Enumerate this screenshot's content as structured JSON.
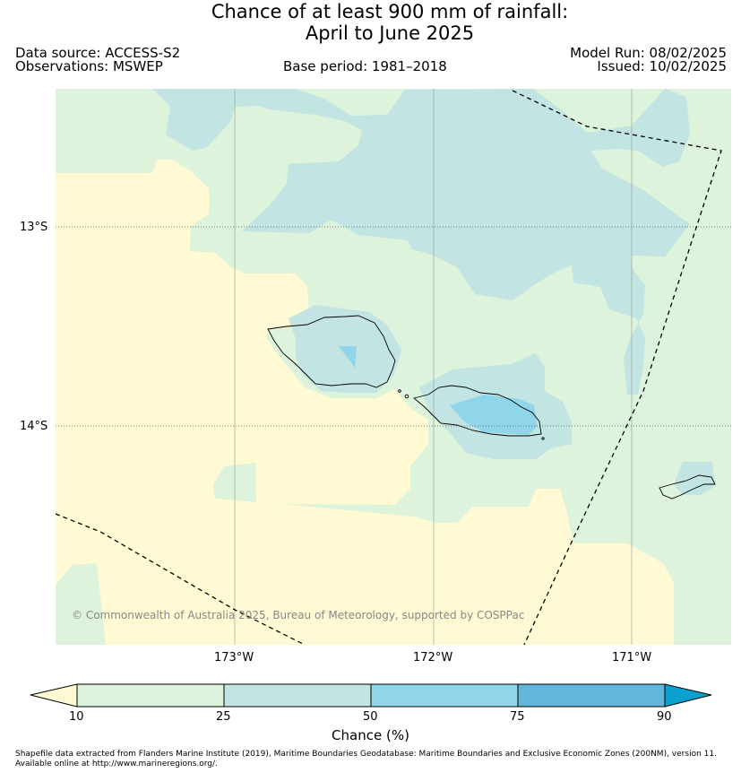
{
  "header": {
    "title_line1": "Chance of at least 900 mm of rainfall:",
    "title_line2": "April to June 2025",
    "data_source": "Data source: ACCESS-S2",
    "observations": "Observations: MSWEP",
    "base_period": "Base period: 1981–2018",
    "model_run": "Model Run: 08/02/2025",
    "issued": "Issued: 10/02/2025"
  },
  "map": {
    "lat_labels": [
      "13°S",
      "14°S"
    ],
    "lon_labels": [
      "173°W",
      "172°W",
      "171°W"
    ],
    "copyright": "© Commonwealth of Australia 2025, Bureau of Meteorology, supported by COSPPac",
    "colors": {
      "lt10": "#fffad3",
      "c10_25": "#ddf3db",
      "c25_50": "#c2e4e2",
      "c50_75": "#90d5ea",
      "c75_90": "#62b6d9",
      "gt90": "#0aa0cf",
      "coast": "#000000",
      "boundary": "#000000",
      "grid": "#aaaaaa"
    }
  },
  "colorbar": {
    "ticks": [
      "10",
      "25",
      "50",
      "75",
      "90"
    ],
    "label": "Chance (%)"
  },
  "footer": {
    "line1": "Shapefile data extracted from Flanders Marine Institute (2019), Maritime Boundaries Geodatabase: Maritime Boundaries and Exclusive Economic Zones (200NM), version 11.",
    "line2": "Available online at http://www.marineregions.org/."
  }
}
